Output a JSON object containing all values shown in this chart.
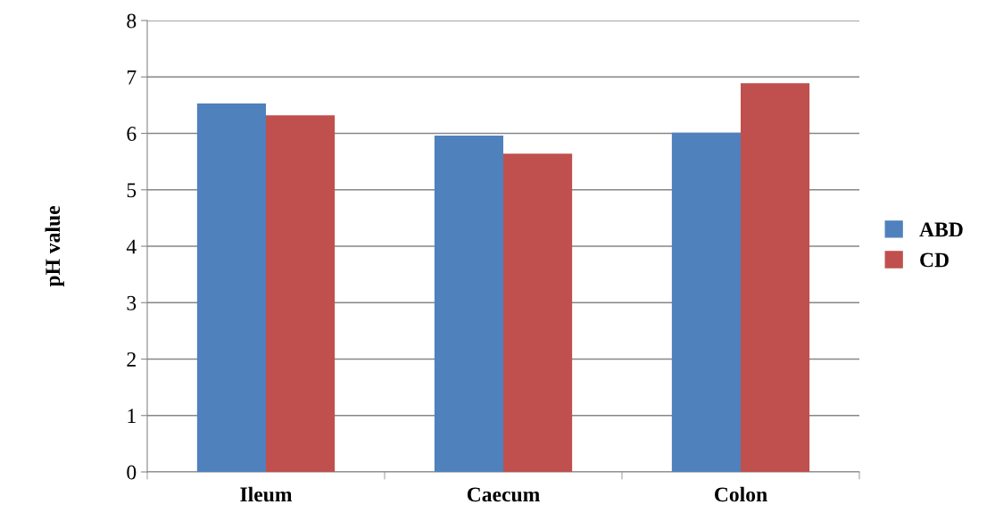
{
  "chart_data": {
    "type": "bar",
    "ylabel": "pH value",
    "categories": [
      "Ileum",
      "Caecum",
      "Colon"
    ],
    "series": [
      {
        "name": "ABD",
        "color": "#4f81bd",
        "values": [
          6.53,
          5.96,
          6.01
        ]
      },
      {
        "name": "CD",
        "color": "#c0504d",
        "values": [
          6.32,
          5.64,
          6.89
        ]
      }
    ],
    "ylim": [
      0,
      8
    ],
    "yticks": [
      0,
      1,
      2,
      3,
      4,
      5,
      6,
      7,
      8
    ],
    "grid": "y",
    "legend": "right"
  }
}
